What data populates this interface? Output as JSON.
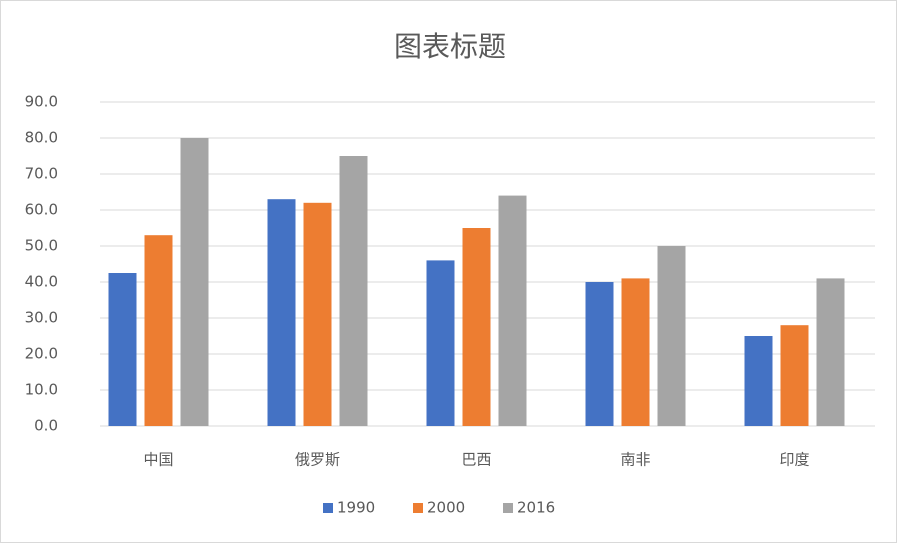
{
  "chart_data": {
    "type": "bar",
    "title": "图表标题",
    "categories": [
      "中国",
      "俄罗斯",
      "巴西",
      "南非",
      "印度"
    ],
    "series": [
      {
        "name": "1990",
        "color": "#4472c4",
        "values": [
          42.5,
          63,
          46,
          40,
          25
        ]
      },
      {
        "name": "2000",
        "color": "#ed7d31",
        "values": [
          53,
          62,
          55,
          41,
          28
        ]
      },
      {
        "name": "2016",
        "color": "#a5a5a5",
        "values": [
          80,
          75,
          64,
          50,
          41
        ]
      }
    ],
    "ylim": [
      0,
      90
    ],
    "yticks": [
      {
        "value": 0,
        "label": "0.0"
      },
      {
        "value": 10,
        "label": "10.0"
      },
      {
        "value": 20,
        "label": "20.0"
      },
      {
        "value": 30,
        "label": "30.0"
      },
      {
        "value": 40,
        "label": "40.0"
      },
      {
        "value": 50,
        "label": "50.0"
      },
      {
        "value": 60,
        "label": "60.0"
      },
      {
        "value": 70,
        "label": "70.0"
      },
      {
        "value": 80,
        "label": "80.0"
      },
      {
        "value": 90,
        "label": "90.0"
      }
    ],
    "grid": true,
    "legend": "bottom"
  }
}
